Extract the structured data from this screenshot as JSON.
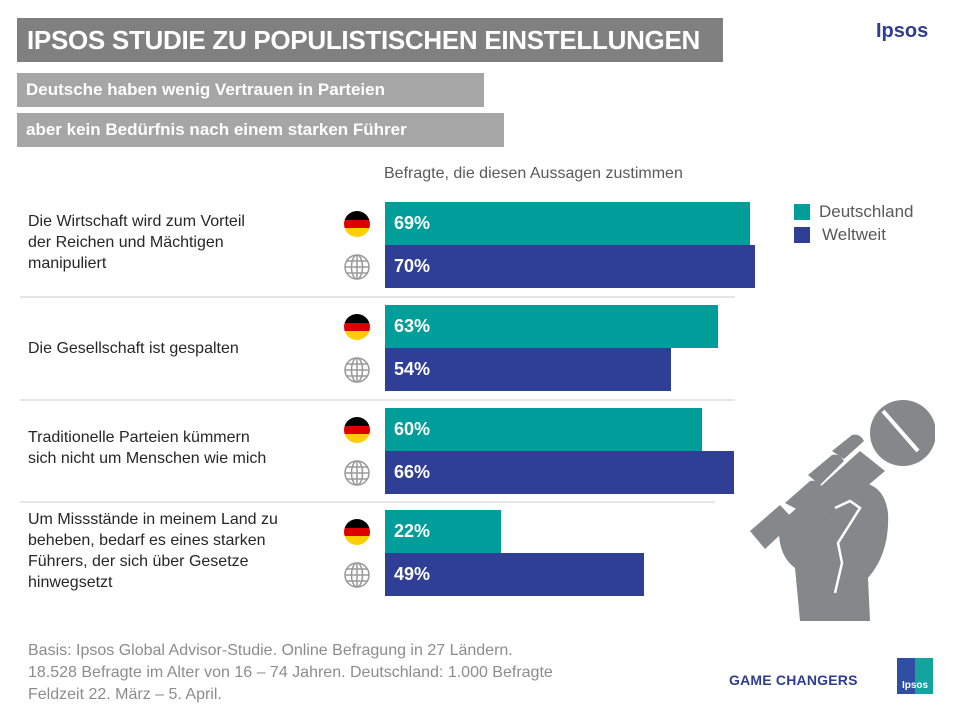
{
  "header": {
    "title": "IPSOS STUDIE ZU POPULISTISCHEN EINSTELLUNGEN",
    "subtitle_1": "Deutsche haben wenig Vertrauen in Parteien",
    "subtitle_2": "aber kein Bedürfnis nach einem starken Führer",
    "brand": "Ipsos"
  },
  "colors": {
    "deutschland": "#009e9a",
    "weltweit": "#303f96"
  },
  "icons": {
    "germany": "germany-flag-icon",
    "world": "globe-icon",
    "illustration": "fist-microphone-icon"
  },
  "chart_data": {
    "type": "bar",
    "orientation": "horizontal",
    "title": "Befragte, die diesen Aussagen zustimmen",
    "xlabel": "",
    "ylabel": "",
    "xlim": [
      0,
      100
    ],
    "unit": "%",
    "grid": false,
    "legend_position": "top-right",
    "categories": [
      "Die Wirtschaft wird zum Vorteil der Reichen und Mächtigen manipuliert",
      "Die Gesellschaft ist gespalten",
      "Traditionelle Parteien kümmern sich nicht um Menschen wie mich",
      "Um Missstände in meinem Land zu beheben, bedarf es eines starken Führers, der sich über Gesetze hinwegsetzt"
    ],
    "series": [
      {
        "name": "Deutschland",
        "values": [
          69,
          63,
          60,
          22
        ],
        "labels": [
          "69%",
          "63%",
          "60%",
          "22%"
        ]
      },
      {
        "name": "Weltweit",
        "values": [
          70,
          54,
          66,
          49
        ],
        "labels": [
          "70%",
          "54%",
          "66%",
          "49%"
        ]
      }
    ]
  },
  "statements": [
    [
      "Die Wirtschaft wird zum Vorteil",
      "der Reichen und Mächtigen",
      "manipuliert"
    ],
    [
      "Die Gesellschaft  ist gespalten"
    ],
    [
      "Traditionelle Parteien kümmern",
      "sich nicht um Menschen wie mich"
    ],
    [
      "Um Missstände in meinem Land zu",
      "beheben,  bedarf es eines starken",
      "Führers, der sich über Gesetze",
      "hinwegsetzt"
    ]
  ],
  "footer": {
    "line_1": "Basis: Ipsos Global Advisor-Studie.  Online Befragung in 27 Ländern.",
    "line_2": "18.528 Befragte im Alter von 16 – 74 Jahren.  Deutschland: 1.000 Befragte",
    "line_3": "Feldzeit 22. März – 5. April.",
    "tagline": "GAME CHANGERS",
    "logo_text": "Ipsos"
  }
}
